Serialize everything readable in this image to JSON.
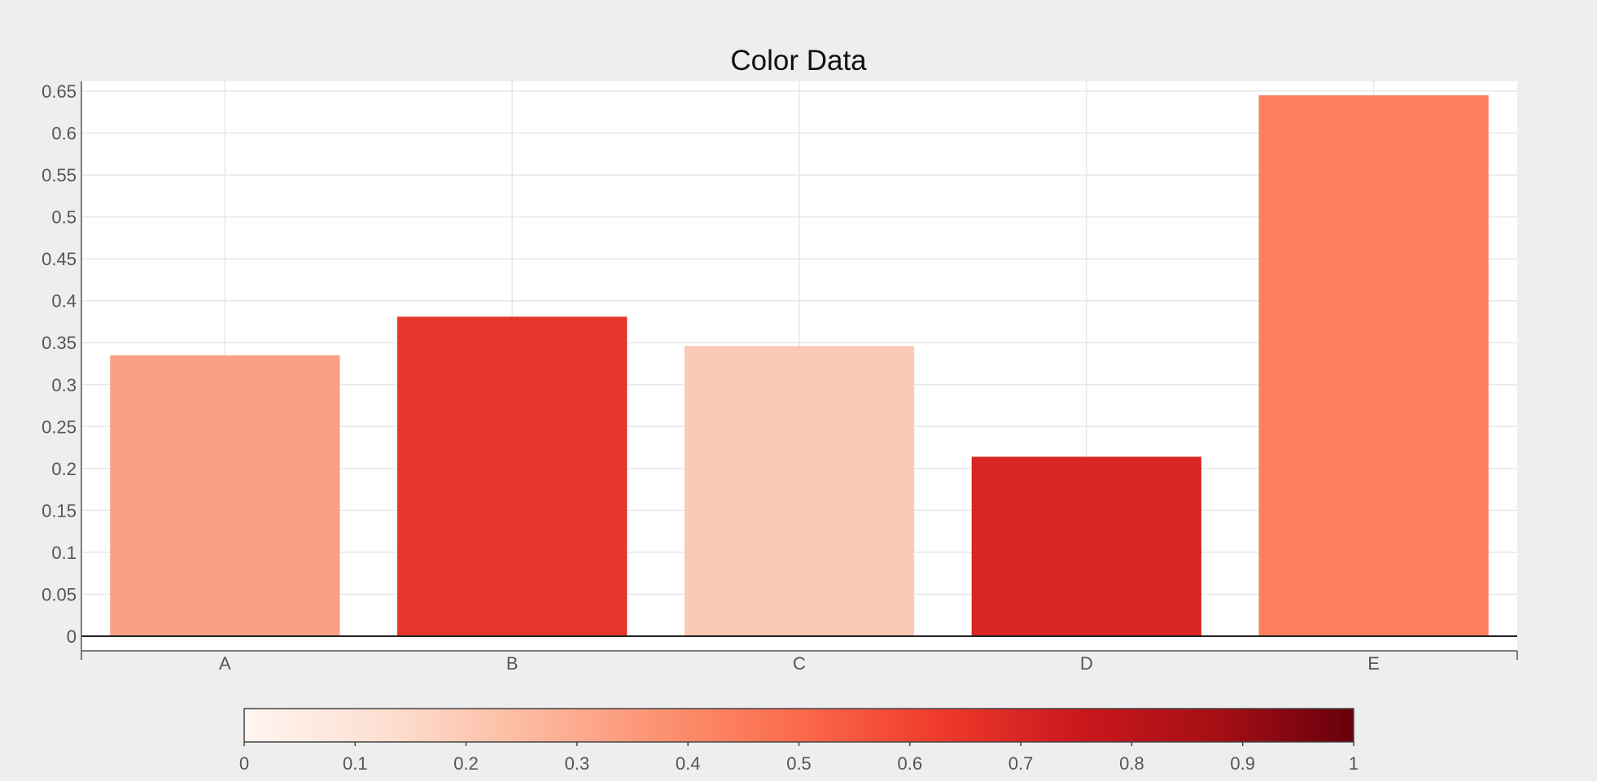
{
  "chart_data": {
    "type": "bar",
    "title": "Color Data",
    "xlabel": "",
    "ylabel": "",
    "categories": [
      "A",
      "B",
      "C",
      "D",
      "E"
    ],
    "values": [
      0.335,
      0.381,
      0.346,
      0.214,
      0.645
    ],
    "color_values": [
      0.3,
      0.58,
      0.17,
      0.65,
      0.42
    ],
    "bar_colors": [
      "#fca083",
      "#e6352a",
      "#fcc9b4",
      "#d92523",
      "#fc7f5f"
    ],
    "ylim": [
      0,
      0.65
    ],
    "yticks": [
      "0",
      "0.05",
      "0.1",
      "0.15",
      "0.2",
      "0.25",
      "0.3",
      "0.35",
      "0.4",
      "0.45",
      "0.5",
      "0.55",
      "0.6",
      "0.65"
    ],
    "grid": true,
    "colorbar": {
      "range": [
        0,
        1
      ],
      "ticks": [
        "0",
        "0.1",
        "0.2",
        "0.3",
        "0.4",
        "0.5",
        "0.6",
        "0.7",
        "0.8",
        "0.9",
        "1"
      ],
      "colormap": "Reds",
      "stops": [
        "#fff5f0",
        "#fee0d2",
        "#fcbba1",
        "#fc9272",
        "#fb6a4a",
        "#ef3b2c",
        "#cb181d",
        "#a50f15",
        "#67000d"
      ]
    }
  }
}
